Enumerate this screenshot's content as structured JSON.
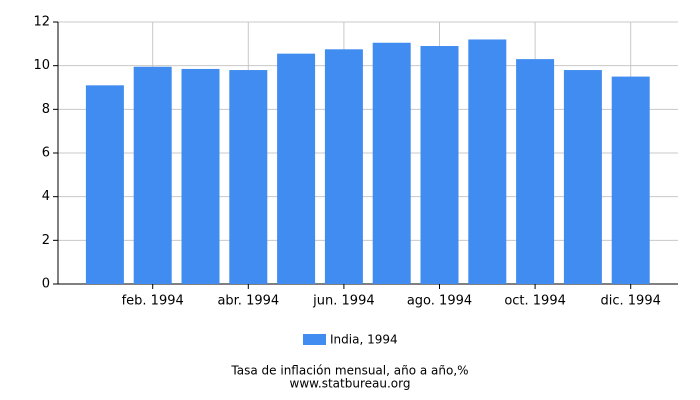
{
  "chart_data": {
    "type": "bar",
    "categories": [
      null,
      "feb. 1994",
      null,
      "abr. 1994",
      null,
      "jun. 1994",
      null,
      "ago. 1994",
      null,
      "oct. 1994",
      null,
      "dic. 1994"
    ],
    "series": [
      {
        "name": "India, 1994",
        "color": "#418cf0",
        "values": [
          9.1,
          9.95,
          9.85,
          9.8,
          10.55,
          10.75,
          11.05,
          10.9,
          11.2,
          10.3,
          9.8,
          9.5
        ]
      }
    ],
    "ylim": [
      0,
      12
    ],
    "yticks": [
      0,
      2,
      4,
      6,
      8,
      10,
      12
    ],
    "grid": true,
    "title": "Tasa de inflación mensual, año a año,%",
    "source": "www.statbureau.org"
  }
}
